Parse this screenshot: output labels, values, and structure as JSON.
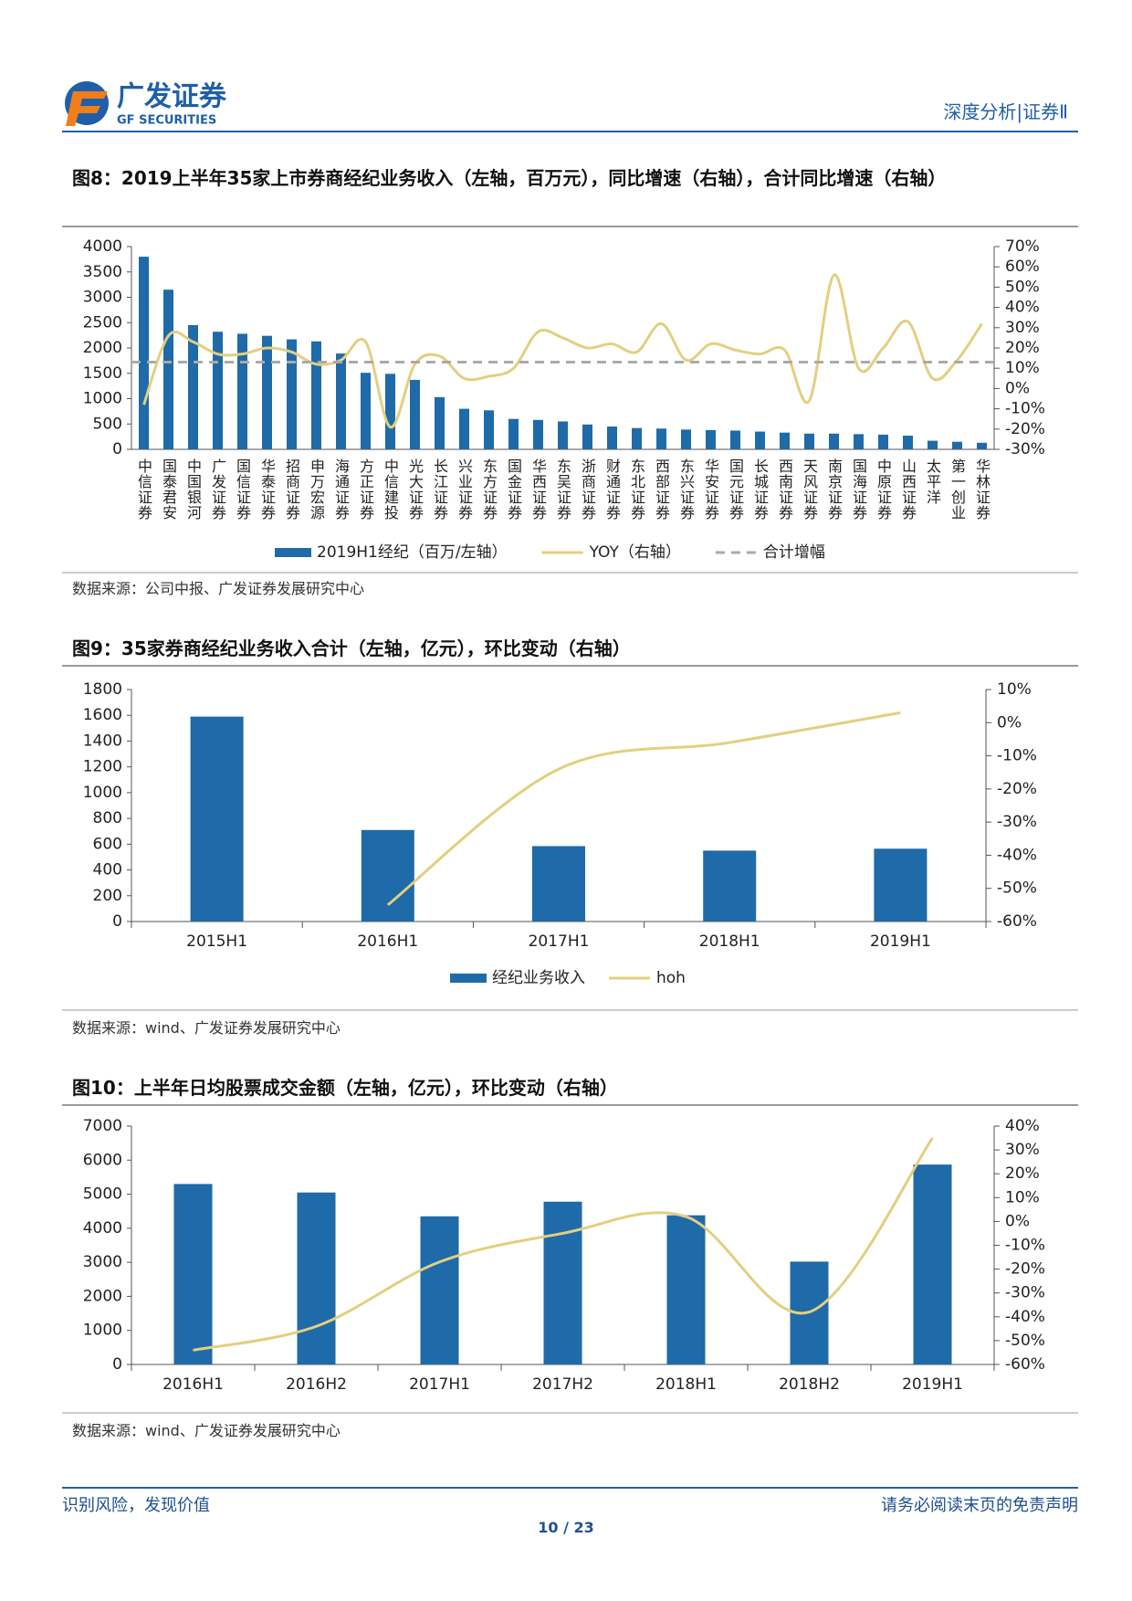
{
  "header": {
    "logo_cn": "广发证券",
    "logo_en": "GF SECURITIES",
    "section": "深度分析|证券Ⅱ"
  },
  "chart_data": [
    {
      "type": "bar",
      "title": "图8：2019上半年35家上市券商经纪业务收入（左轴，百万元），同比增速（右轴），合计同比增速（右轴）",
      "source": "数据来源：公司中报、广发证券发展研究中心",
      "categories": [
        "中信证券",
        "国泰君安",
        "中国银河",
        "广发证券",
        "国信证券",
        "华泰证券",
        "招商证券",
        "申万宏源",
        "海通证券",
        "方正证券",
        "中信建投",
        "光大证券",
        "长江证券",
        "兴业证券",
        "东方证券",
        "国金证券",
        "华西证券",
        "东吴证券",
        "浙商证券",
        "财通证券",
        "东北证券",
        "西部证券",
        "东兴证券",
        "华安证券",
        "国元证券",
        "长城证券",
        "西南证券",
        "天风证券",
        "南京证券",
        "国海证券",
        "中原证券",
        "山西证券",
        "太平洋",
        "第一创业",
        "华林证券"
      ],
      "series": [
        {
          "name": "2019H1经纪（百万/左轴）",
          "color": "#1f6aa8",
          "values": [
            3800,
            3150,
            2450,
            2320,
            2280,
            2240,
            2170,
            2130,
            1890,
            1510,
            1490,
            1370,
            1030,
            800,
            770,
            600,
            580,
            550,
            490,
            450,
            420,
            410,
            390,
            380,
            370,
            350,
            330,
            310,
            310,
            300,
            290,
            270,
            170,
            150,
            130
          ]
        },
        {
          "name": "YOY（右轴）",
          "color": "#e3cf7f",
          "type": "line",
          "axis": "y2",
          "values": [
            -8,
            26,
            23,
            17,
            17,
            20,
            18,
            12,
            14,
            23,
            -19,
            12,
            16,
            5,
            6,
            10,
            28,
            25,
            20,
            22,
            18,
            32,
            14,
            22,
            19,
            17,
            19,
            -6,
            56,
            10,
            20,
            33,
            5,
            14,
            32
          ]
        }
      ],
      "reference_lines": [
        {
          "name": "合计增幅",
          "color": "#aaaaaa",
          "axis": "y2",
          "value": 13,
          "style": "dashed"
        }
      ],
      "ylim": [
        0,
        4000
      ],
      "yticks": [
        0,
        500,
        1000,
        1500,
        2000,
        2500,
        3000,
        3500,
        4000
      ],
      "y2lim": [
        -30,
        70
      ],
      "y2ticks": [
        {
          "value": -30,
          "label": "-30%"
        },
        {
          "value": -20,
          "label": "-20%"
        },
        {
          "value": -10,
          "label": "-10%"
        },
        {
          "value": 0,
          "label": "0%"
        },
        {
          "value": 10,
          "label": "10%"
        },
        {
          "value": 20,
          "label": "20%"
        },
        {
          "value": 30,
          "label": "30%"
        },
        {
          "value": 40,
          "label": "40%"
        },
        {
          "value": 50,
          "label": "50%"
        },
        {
          "value": 60,
          "label": "60%"
        },
        {
          "value": 70,
          "label": "70%"
        }
      ],
      "legend": "bottom"
    },
    {
      "type": "bar",
      "title": "图9：35家券商经纪业务收入合计（左轴，亿元），环比变动（右轴）",
      "source": "数据来源：wind、广发证券发展研究中心",
      "categories": [
        "2015H1",
        "2016H1",
        "2017H1",
        "2018H1",
        "2019H1"
      ],
      "series": [
        {
          "name": "经纪业务收入",
          "color": "#1f6aa8",
          "values": [
            1590,
            710,
            585,
            550,
            565
          ]
        },
        {
          "name": "hoh",
          "color": "#e3cf7f",
          "type": "line",
          "axis": "y2",
          "values": [
            null,
            -55,
            -14,
            -6,
            3
          ]
        }
      ],
      "ylim": [
        0,
        1800
      ],
      "yticks": [
        0,
        200,
        400,
        600,
        800,
        1000,
        1200,
        1400,
        1600,
        1800
      ],
      "y2lim": [
        -60,
        10
      ],
      "y2ticks": [
        {
          "value": -60,
          "label": "-60%"
        },
        {
          "value": -50,
          "label": "-50%"
        },
        {
          "value": -40,
          "label": "-40%"
        },
        {
          "value": -30,
          "label": "-30%"
        },
        {
          "value": -20,
          "label": "-20%"
        },
        {
          "value": -10,
          "label": "-10%"
        },
        {
          "value": 0,
          "label": "0%"
        },
        {
          "value": 10,
          "label": "10%"
        }
      ],
      "legend": "bottom"
    },
    {
      "type": "bar",
      "title": "图10：上半年日均股票成交金额（左轴，亿元），环比变动（右轴）",
      "source": "数据来源：wind、广发证券发展研究中心",
      "categories": [
        "2016H1",
        "2016H2",
        "2017H1",
        "2017H2",
        "2018H1",
        "2018H2",
        "2019H1"
      ],
      "series": [
        {
          "color": "#1f6aa8",
          "values": [
            5300,
            5050,
            4350,
            4780,
            4380,
            3020,
            5870
          ]
        },
        {
          "color": "#e3cf7f",
          "type": "line",
          "axis": "y2",
          "values": [
            -54,
            -44,
            -17,
            -5,
            2,
            -38,
            35
          ]
        }
      ],
      "ylim": [
        0,
        7000
      ],
      "yticks": [
        0,
        1000,
        2000,
        3000,
        4000,
        5000,
        6000,
        7000
      ],
      "y2lim": [
        -60,
        40
      ],
      "y2ticks": [
        {
          "value": -60,
          "label": "-60%"
        },
        {
          "value": -50,
          "label": "-50%"
        },
        {
          "value": -40,
          "label": "-40%"
        },
        {
          "value": -30,
          "label": "-30%"
        },
        {
          "value": -20,
          "label": "-20%"
        },
        {
          "value": -10,
          "label": "-10%"
        },
        {
          "value": 0,
          "label": "0%"
        },
        {
          "value": 10,
          "label": "10%"
        },
        {
          "value": 20,
          "label": "20%"
        },
        {
          "value": 30,
          "label": "30%"
        },
        {
          "value": 40,
          "label": "40%"
        }
      ]
    }
  ],
  "footer": {
    "left": "识别风险，发现价值",
    "right": "请务必阅读末页的免责声明",
    "page": "10 / 23"
  }
}
